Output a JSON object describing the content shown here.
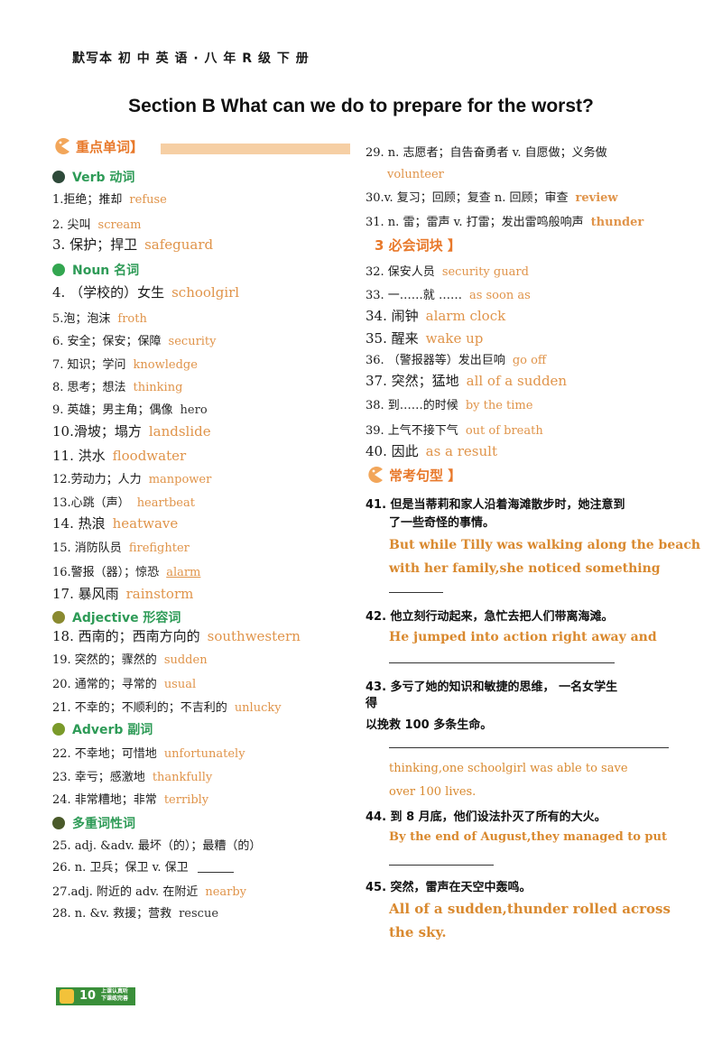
{
  "header": {
    "text": "默写本  初 中 英 语  · 八 年 R 级  下 册"
  },
  "title": "Section B What can we do to prepare for the worst?",
  "sections": {
    "key_words": "重点单词】",
    "phrases": "3  必会词块 】",
    "sentences": "常考句型 】"
  },
  "categories": {
    "verb": "Verb  动词",
    "noun": "Noun  名词",
    "adjective": "Adjective  形容词",
    "adverb": "Adverb  副词",
    "multi": "多重词性词"
  },
  "words": [
    {
      "cn": "1.拒绝；推却",
      "en": "refuse"
    },
    {
      "cn": "2. 尖叫",
      "en": "scream"
    },
    {
      "cn": "3. 保护；捍卫",
      "en": "safeguard"
    },
    {
      "cn": "4. （学校的）女生",
      "en": "schoolgirl"
    },
    {
      "cn": "5.泡；泡沫",
      "en": "froth"
    },
    {
      "cn": "6. 安全；保安；保障",
      "en": "security"
    },
    {
      "cn": "7. 知识；学问",
      "en": "knowledge"
    },
    {
      "cn": "8. 思考；想法",
      "en": "thinking"
    },
    {
      "cn": "9.  英雄；男主角；偶像",
      "en": "hero"
    },
    {
      "cn": "10.滑坡；塌方",
      "en": "landslide"
    },
    {
      "cn": "11. 洪水",
      "en": "floodwater"
    },
    {
      "cn": "12.劳动力；人力",
      "en": "manpower"
    },
    {
      "cn": "13.心跳（声）",
      "en": "heartbeat"
    },
    {
      "cn": "14. 热浪",
      "en": "heatwave"
    },
    {
      "cn": "15. 消防队员",
      "en": "firefighter"
    },
    {
      "cn": "16.警报（器）；惊恐",
      "en": "alarm"
    },
    {
      "cn": "17. 暴风雨",
      "en": "rainstorm"
    },
    {
      "cn": "18. 西南的；西南方向的",
      "en": "southwestern"
    },
    {
      "cn": "19. 突然的；骤然的",
      "en": "sudden"
    },
    {
      "cn": "20. 通常的；寻常的",
      "en": "usual"
    },
    {
      "cn": "21. 不幸的；不顺利的；不吉利的",
      "en": "unlucky"
    },
    {
      "cn": "22.  不幸地；可惜地",
      "en": "unfortunately"
    },
    {
      "cn": "23. 幸亏；感激地",
      "en": "thankfully"
    },
    {
      "cn": "24. 非常糟地；非常",
      "en": "terribly"
    },
    {
      "cn": "25. adj. &adv. 最坏（的）；最糟（的）",
      "en": ""
    },
    {
      "cn": "26. n.  卫兵；保卫   v. 保卫",
      "en": ""
    },
    {
      "cn": "27.adj.  附近的    adv. 在附近",
      "en": "nearby"
    },
    {
      "cn": "28. n. &v.  救援；营救",
      "en": "rescue"
    },
    {
      "cn": "29. n. 志愿者；自告奋勇者    v. 自愿做；义务做",
      "en": ""
    },
    {
      "cn": "",
      "en": "volunteer"
    },
    {
      "cn": "30.v. 复习；回顾；复查   n. 回顾；审查",
      "en": "review"
    },
    {
      "cn": "31. n. 雷；雷声    v. 打雷；发出雷鸣般响声",
      "en": "thunder"
    }
  ],
  "phrases": [
    {
      "cn": "32. 保安人员",
      "en": "security guard"
    },
    {
      "cn": "33. 一……就 ……",
      "en": "as soon as"
    },
    {
      "cn": "34. 闹钟",
      "en": "alarm clock"
    },
    {
      "cn": "35. 醒来",
      "en": "wake up"
    },
    {
      "cn": "36. （警报器等）发出巨响",
      "en": "go off"
    },
    {
      "cn": "37. 突然；猛地",
      "en": "all of a sudden"
    },
    {
      "cn": "38. 到……的时候",
      "en": "by the time"
    },
    {
      "cn": "39. 上气不接下气",
      "en": "out  of  breath"
    },
    {
      "cn": "40. 因此",
      "en": "as a result"
    }
  ],
  "sentences": [
    {
      "q": "41. 但是当蒂莉和家人沿着海滩散步时，她注意到",
      "q2": "了一些奇怪的事情。",
      "a": [
        "But while Tilly was walking along the beach",
        "with  her  family,she  noticed  something"
      ]
    },
    {
      "q": "42. 他立刻行动起来，急忙去把人们带离海滩。",
      "q2": "",
      "a": [
        "He  jumped  into  action  right  away  and"
      ]
    },
    {
      "q": "43.  多亏了她的知识和敏捷的思维，  一名女学生",
      "q2": "得",
      "q3": "以挽救 100 多条生命。",
      "a": [
        "thinking,one   schoolgirl   was   able   to   save",
        "over   100   lives."
      ]
    },
    {
      "q": "44.  到 8 月底，他们设法扑灭了所有的大火。",
      "q2": "",
      "a": [
        "By  the  end  of August,they  managed  to  put"
      ]
    },
    {
      "q": "45. 突然，雷声在天空中轰鸣。",
      "q2": "",
      "a": [
        "All  of  a  sudden,thunder  rolled  across",
        "the sky."
      ]
    }
  ],
  "footer": {
    "page": "10",
    "caption": "上课认真听 下课练完善"
  }
}
